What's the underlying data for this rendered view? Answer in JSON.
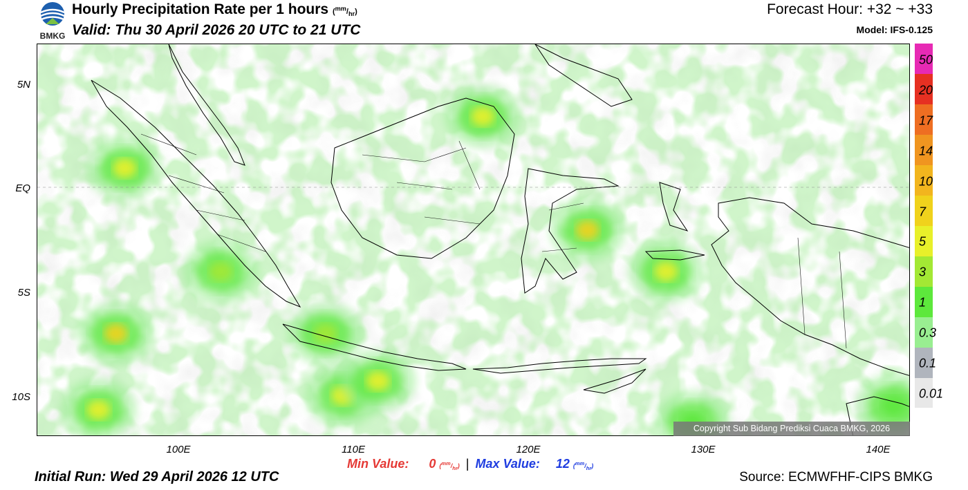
{
  "header": {
    "logo_text": "BMKG",
    "title": "Hourly Precipitation Rate per 1 hours",
    "title_unit_num": "mm",
    "title_unit_den": "hr",
    "valid": "Valid: Thu 30 April 2026 20 UTC to 21 UTC",
    "forecast_hour": "Forecast Hour: +32 ~ +33",
    "model": "Model: IFS-0.125"
  },
  "map": {
    "region": "Indonesia",
    "lat_labels": [
      "5N",
      "EQ",
      "5S",
      "10S"
    ],
    "lon_labels": [
      "100E",
      "110E",
      "120E",
      "130E",
      "140E"
    ],
    "copyright": "Copyright Sub Bidang Prediksi Cuaca BMKG, 2026",
    "precip_hotspots": [
      {
        "lon": 96.5,
        "lat": -6.5,
        "value": 7
      },
      {
        "lon": 95.5,
        "lat": -10.2,
        "value": 5
      },
      {
        "lon": 97.0,
        "lat": 1.5,
        "value": 5
      },
      {
        "lon": 108.5,
        "lat": -6.5,
        "value": 3
      },
      {
        "lon": 109.5,
        "lat": -9.5,
        "value": 5
      },
      {
        "lon": 111.5,
        "lat": -8.8,
        "value": 5
      },
      {
        "lon": 117.5,
        "lat": 4.0,
        "value": 5
      },
      {
        "lon": 123.5,
        "lat": -1.5,
        "value": 7
      },
      {
        "lon": 128.0,
        "lat": -3.5,
        "value": 5
      },
      {
        "lon": 102.5,
        "lat": -3.5,
        "value": 3
      },
      {
        "lon": 141.0,
        "lat": -10.0,
        "value": 1
      },
      {
        "lon": 129.5,
        "lat": -10.8,
        "value": 1
      }
    ]
  },
  "colorbar": {
    "colors": [
      "#e8e8e8",
      "#b0b5bd",
      "#99ee91",
      "#5de83c",
      "#a3e834",
      "#e8f02a",
      "#f0d21c",
      "#f2b51e",
      "#f09520",
      "#ee6e22",
      "#e63022",
      "#e72ab4"
    ],
    "labels": [
      "0.01",
      "0.1",
      "0.3",
      "1",
      "3",
      "5",
      "7",
      "10",
      "14",
      "17",
      "20",
      "50"
    ]
  },
  "footer": {
    "min_label": "Min Value:",
    "min_value": "0",
    "max_label": "Max Value:",
    "max_value": "12",
    "unit_num": "mm",
    "unit_den": "hr",
    "separator": "|",
    "initial_run": "Initial Run: Wed 29 April 2026 12 UTC",
    "source": "Source: ECMWFHF-CIPS BMKG"
  }
}
